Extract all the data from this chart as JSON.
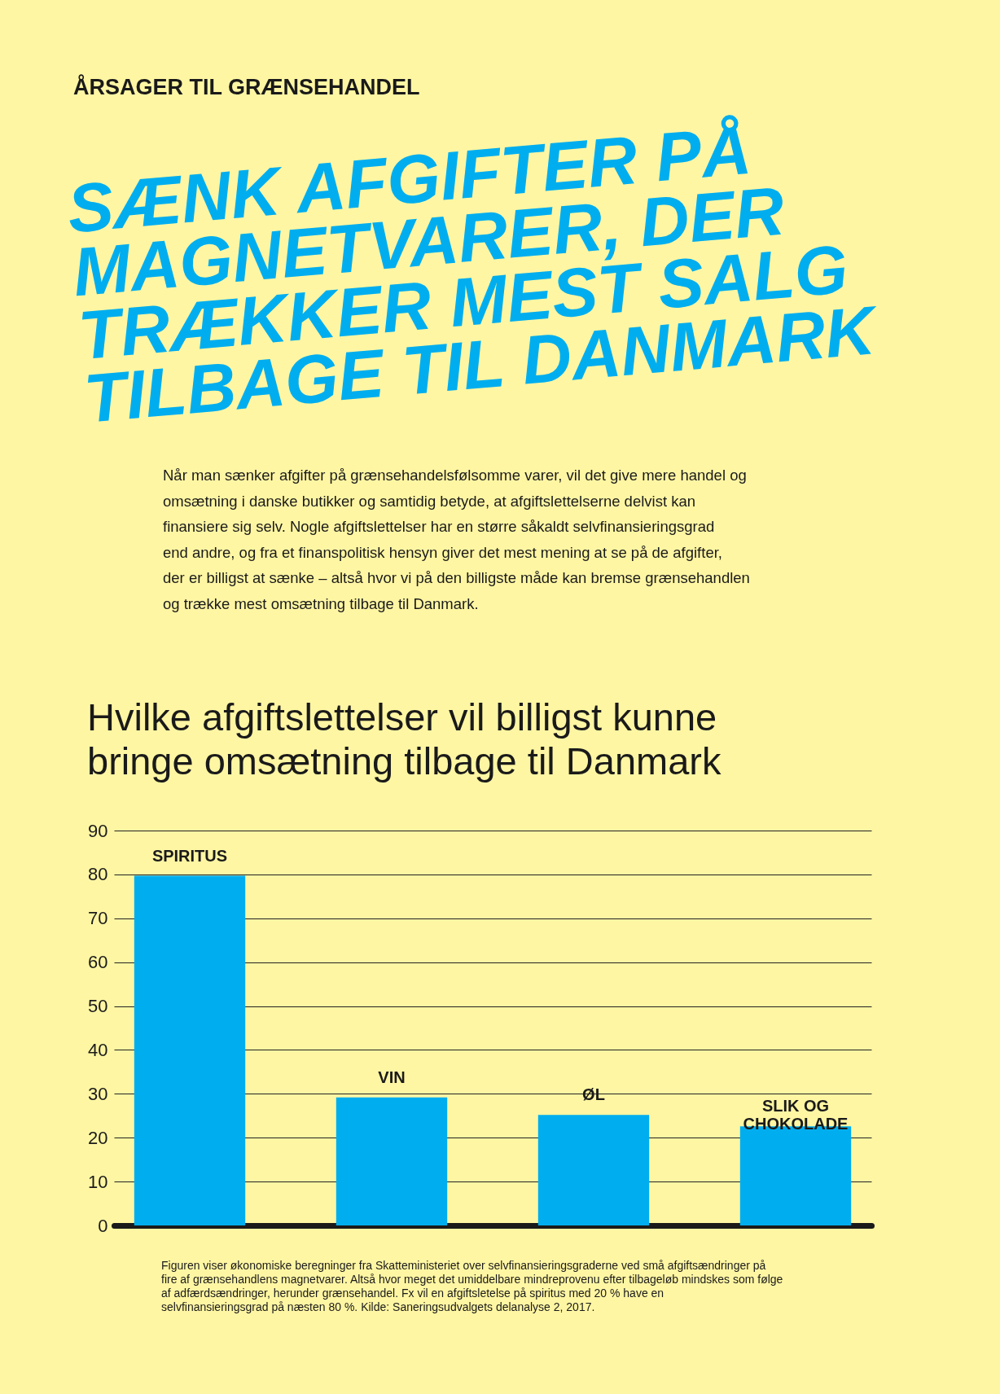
{
  "chart_data": {
    "type": "bar",
    "title": "Hvilke afgiftslettelser vil billigst kunne bringe omsætning tilbage til Danmark",
    "categories": [
      "SPIRITUS",
      "VIN",
      "ØL",
      "SLIK OG CHOKOLADE"
    ],
    "values": [
      79.7,
      29.2,
      25.2,
      22.6
    ],
    "color": "#00aeef",
    "ylim": [
      0,
      90
    ],
    "yticks": [
      0,
      10,
      20,
      30,
      40,
      50,
      60,
      70,
      80,
      90
    ],
    "grid": "y",
    "tick_labels": "y",
    "annotations": [
      "ÅRSAGER TIL GRÆNSEHANDEL",
      "SÆNK AFGIFTER PÅ MAGNETVARER, DER TRÆKKER MEST SALG TILBAGE TIL DANMARK",
      "Når man sænker afgifter på grænsehandelsfølsomme varer, vil det give mere handel og omsætning i danske butikker og samtidig betyde, at afgiftslettelserne delvist kan finansiere sig selv. Nogle afgiftslettelser har en større såkaldt selvfinansieringsgrad end andre, og fra et finanspolitisk hensyn giver det mest mening at se på de afgifter, der er billigst at sænke – altså hvor vi på den billigste måde kan bremse grænsehandlen og trække mest omsætning tilbage til Danmark.",
      "Figuren viser økonomiske beregninger fra Skatteministeriet over selvfinansieringsgraderne ved små afgiftsændringer på fire af grænsehandlens magnetvarer. Altså hvor meget det umiddelbare mindreprovenu efter tilbageløb mindskes som følge af adfærdsændringer, herunder grænsehandel. Fx vil en afgiftsletelse på spiritus med 20 % have en selvfinansieringsgrad på næsten 80 %. Kilde: Saneringsudvalgets delanalyse 2, 2017."
    ]
  }
}
